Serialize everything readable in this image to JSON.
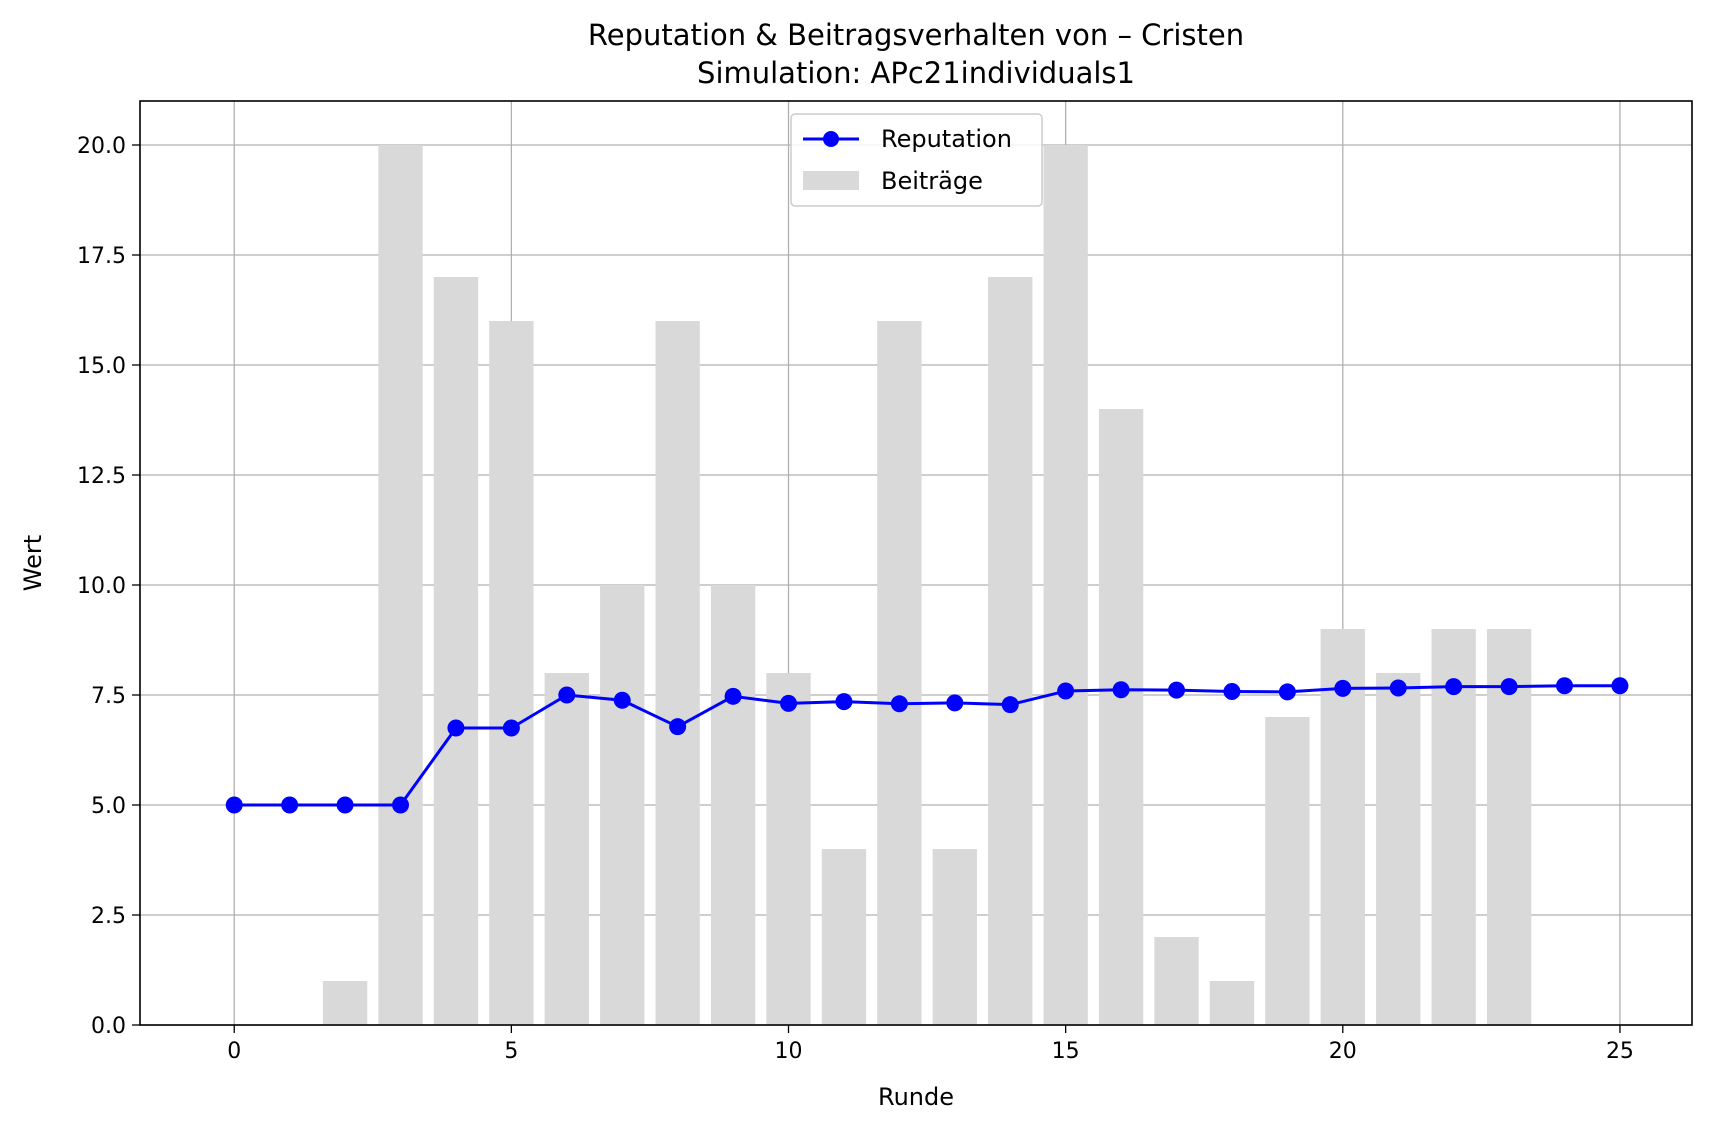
{
  "chart_data": {
    "type": "bar+line",
    "title": "Reputation & Beitragsverhalten von – Cristen",
    "subtitle": "Simulation: APc21individuals1",
    "xlabel": "Runde",
    "ylabel": "Wert",
    "xlim": [
      -1.7,
      26.3
    ],
    "ylim": [
      0,
      21
    ],
    "xticks": [
      0,
      5,
      10,
      15,
      20,
      25
    ],
    "yticks": [
      0.0,
      2.5,
      5.0,
      7.5,
      10.0,
      12.5,
      15.0,
      17.5,
      20.0
    ],
    "grid": true,
    "legend_position": "top-center",
    "series": [
      {
        "name": "Reputation",
        "type": "line",
        "color": "#0000ff",
        "marker": "circle",
        "x": [
          0,
          1,
          2,
          3,
          4,
          5,
          6,
          7,
          8,
          9,
          10,
          11,
          12,
          13,
          14,
          15,
          16,
          17,
          18,
          19,
          20,
          21,
          22,
          23,
          24,
          25
        ],
        "values": [
          5.0,
          5.0,
          5.0,
          5.0,
          6.75,
          6.75,
          7.5,
          7.38,
          6.78,
          7.47,
          7.31,
          7.35,
          7.3,
          7.32,
          7.28,
          7.59,
          7.62,
          7.61,
          7.58,
          7.57,
          7.65,
          7.66,
          7.69,
          7.69,
          7.71,
          7.71
        ]
      },
      {
        "name": "Beiträge",
        "type": "bar",
        "color": "#d9d9d9",
        "x": [
          0,
          1,
          2,
          3,
          4,
          5,
          6,
          7,
          8,
          9,
          10,
          11,
          12,
          13,
          14,
          15,
          16,
          17,
          18,
          19,
          20,
          21,
          22,
          23,
          24,
          25
        ],
        "values": [
          0,
          0,
          1,
          20,
          17,
          16,
          8,
          10,
          16,
          10,
          8,
          4,
          16,
          4,
          17,
          20,
          14,
          2,
          1,
          7,
          9,
          8,
          9,
          9,
          0,
          0
        ]
      }
    ]
  }
}
